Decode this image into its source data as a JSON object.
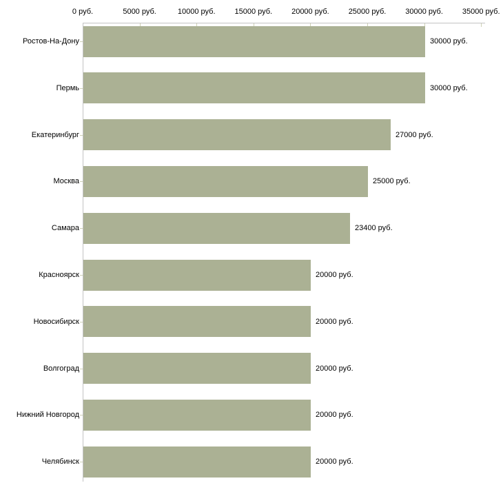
{
  "chart_data": {
    "type": "bar",
    "orientation": "horizontal",
    "title": "",
    "xlabel": "",
    "ylabel": "",
    "unit": "руб.",
    "categories": [
      "Ростов-На-Дону",
      "Пермь",
      "Екатеринбург",
      "Москва",
      "Самара",
      "Красноярск",
      "Новосибирск",
      "Волгоград",
      "Нижний Новгород",
      "Челябинск"
    ],
    "values": [
      30000,
      30000,
      27000,
      25000,
      23400,
      20000,
      20000,
      20000,
      20000,
      20000
    ],
    "value_labels": [
      "30000 руб.",
      "30000 руб.",
      "27000 руб.",
      "25000 руб.",
      "23400 руб.",
      "20000 руб.",
      "20000 руб.",
      "20000 руб.",
      "20000 руб.",
      "20000 руб."
    ],
    "x_ticks": [
      0,
      5000,
      10000,
      15000,
      20000,
      25000,
      30000,
      35000
    ],
    "x_tick_labels": [
      "0 руб.",
      "5000 руб.",
      "10000 руб.",
      "15000 руб.",
      "20000 руб.",
      "25000 руб.",
      "30000 руб.",
      "35000 руб."
    ],
    "xlim": [
      0,
      35000
    ],
    "grid": false,
    "legend_position": "none",
    "colors": {
      "bar": "#abb194",
      "axis": "#c2c2c2",
      "tick": "#cdd0b4",
      "text": "#000000",
      "background": "#ffffff"
    }
  }
}
